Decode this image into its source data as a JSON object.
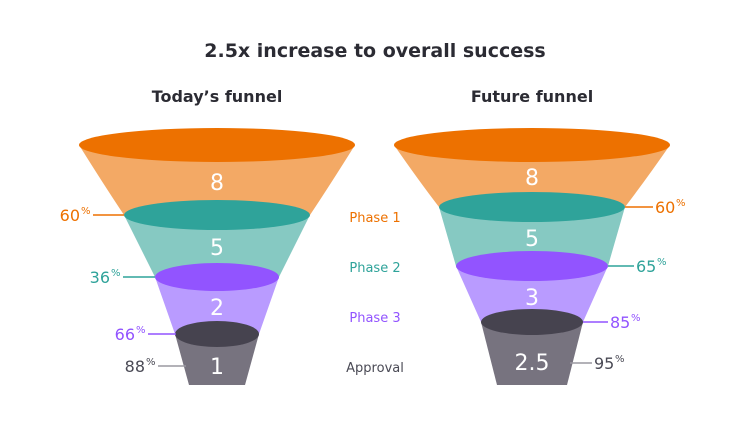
{
  "title": "2.5x increase to overall success",
  "colors": {
    "phase1": {
      "dark": "#ED7100",
      "light": "#F3A965"
    },
    "phase2": {
      "dark": "#2FA39A",
      "light": "#86C9C2"
    },
    "phase3": {
      "dark": "#9254FF",
      "light": "#B99BFF"
    },
    "approval": {
      "dark": "#46434F",
      "light": "#77737F",
      "text": "#4a4a55"
    }
  },
  "phases": [
    "Phase 1",
    "Phase 2",
    "Phase 3",
    "Approval"
  ],
  "funnels": [
    {
      "title": "Today’s funnel",
      "values": [
        "8",
        "5",
        "2",
        "1"
      ],
      "rates": [
        "60",
        "36",
        "66",
        "88"
      ],
      "percent_sign": "%"
    },
    {
      "title": "Future funnel",
      "values": [
        "8",
        "5",
        "3",
        "2.5"
      ],
      "rates": [
        "60",
        "65",
        "85",
        "95"
      ],
      "percent_sign": "%"
    }
  ]
}
